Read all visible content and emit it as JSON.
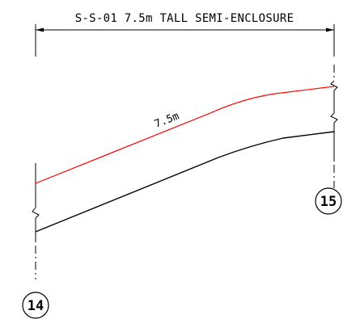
{
  "drawing": {
    "dimension_title": "S-S-01 7.5m TALL SEMI-ENCLOSURE",
    "height_label": "7.5m",
    "grid_left": "14",
    "grid_right": "15",
    "colors": {
      "linework": "#000000",
      "enclosure_line": "#ff0000",
      "background": "#ffffff"
    }
  }
}
